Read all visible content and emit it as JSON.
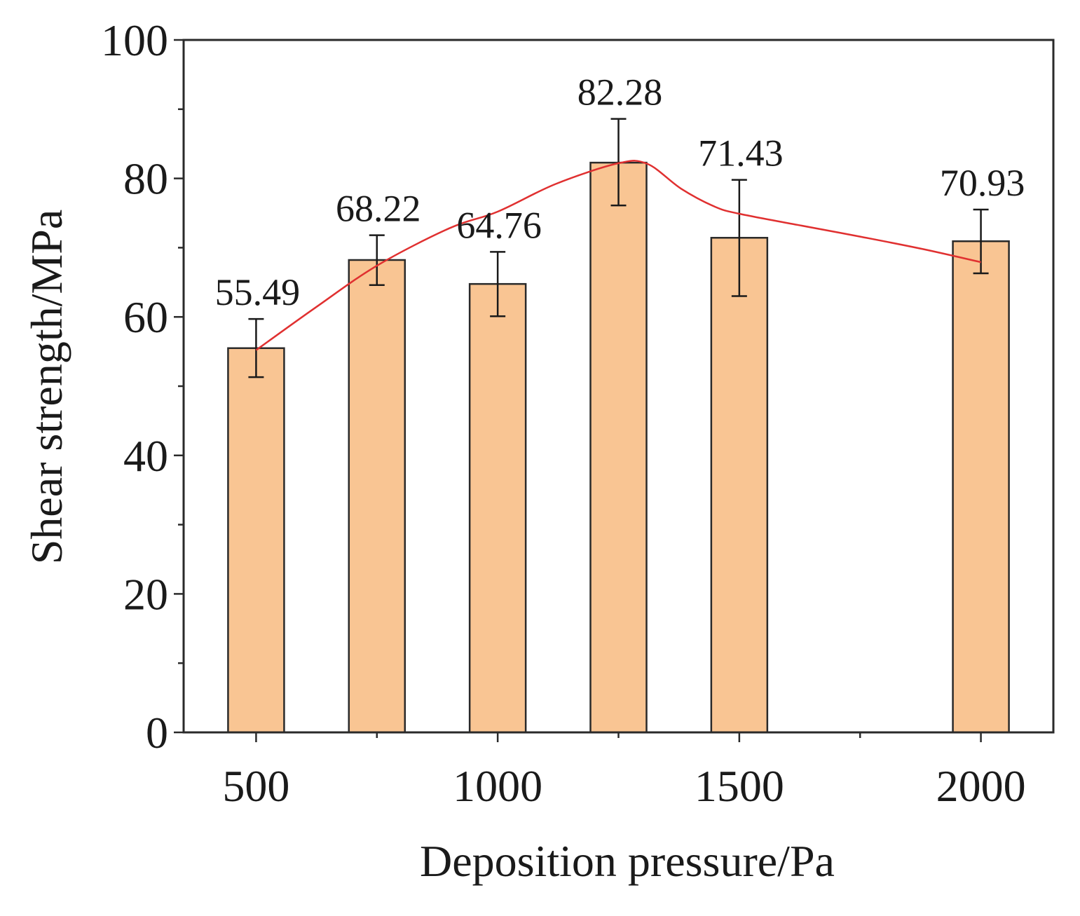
{
  "chart_data": {
    "type": "bar",
    "title": "",
    "xlabel": "Deposition pressure/Pa",
    "ylabel": "Shear strength/MPa",
    "xlim": [
      350,
      2150
    ],
    "ylim": [
      0,
      100
    ],
    "x_ticks": [
      500,
      1000,
      1500,
      2000
    ],
    "x_tick_labels": [
      "500",
      "1000",
      "1500",
      "2000"
    ],
    "x_minor_ticks": [
      750,
      1250,
      1750
    ],
    "y_ticks": [
      0,
      20,
      40,
      60,
      80,
      100
    ],
    "y_tick_labels": [
      "0",
      "20",
      "40",
      "60",
      "80",
      "100"
    ],
    "y_minor_ticks": [
      10,
      30,
      50,
      70,
      90
    ],
    "grid": false,
    "series": [
      {
        "name": "Shear strength",
        "x": [
          500,
          750,
          1000,
          1250,
          1500,
          2000
        ],
        "values": [
          55.49,
          68.22,
          64.76,
          82.28,
          71.43,
          70.93
        ],
        "value_labels": [
          "55.49",
          "68.22",
          "64.76",
          "82.28",
          "71.43",
          "70.93"
        ],
        "error_upper": [
          59.7,
          71.8,
          69.4,
          88.6,
          79.8,
          75.5
        ],
        "error_lower": [
          51.3,
          64.6,
          60.1,
          76.1,
          63.0,
          66.3
        ]
      }
    ],
    "trend_line": {
      "x": [
        500,
        620,
        750,
        900,
        1000,
        1120,
        1250,
        1310,
        1380,
        1450,
        1500,
        1620,
        1750,
        1880,
        2000
      ],
      "y": [
        55.2,
        61.2,
        67.4,
        72.8,
        75.2,
        79.2,
        82.2,
        82.1,
        78.5,
        75.9,
        74.9,
        73.3,
        71.6,
        69.8,
        67.9
      ]
    },
    "colors": {
      "bar_fill": "#f9c593",
      "bar_stroke": "#2a2a2a",
      "trend_line": "#e03030",
      "axis": "#2a2a2a"
    }
  }
}
